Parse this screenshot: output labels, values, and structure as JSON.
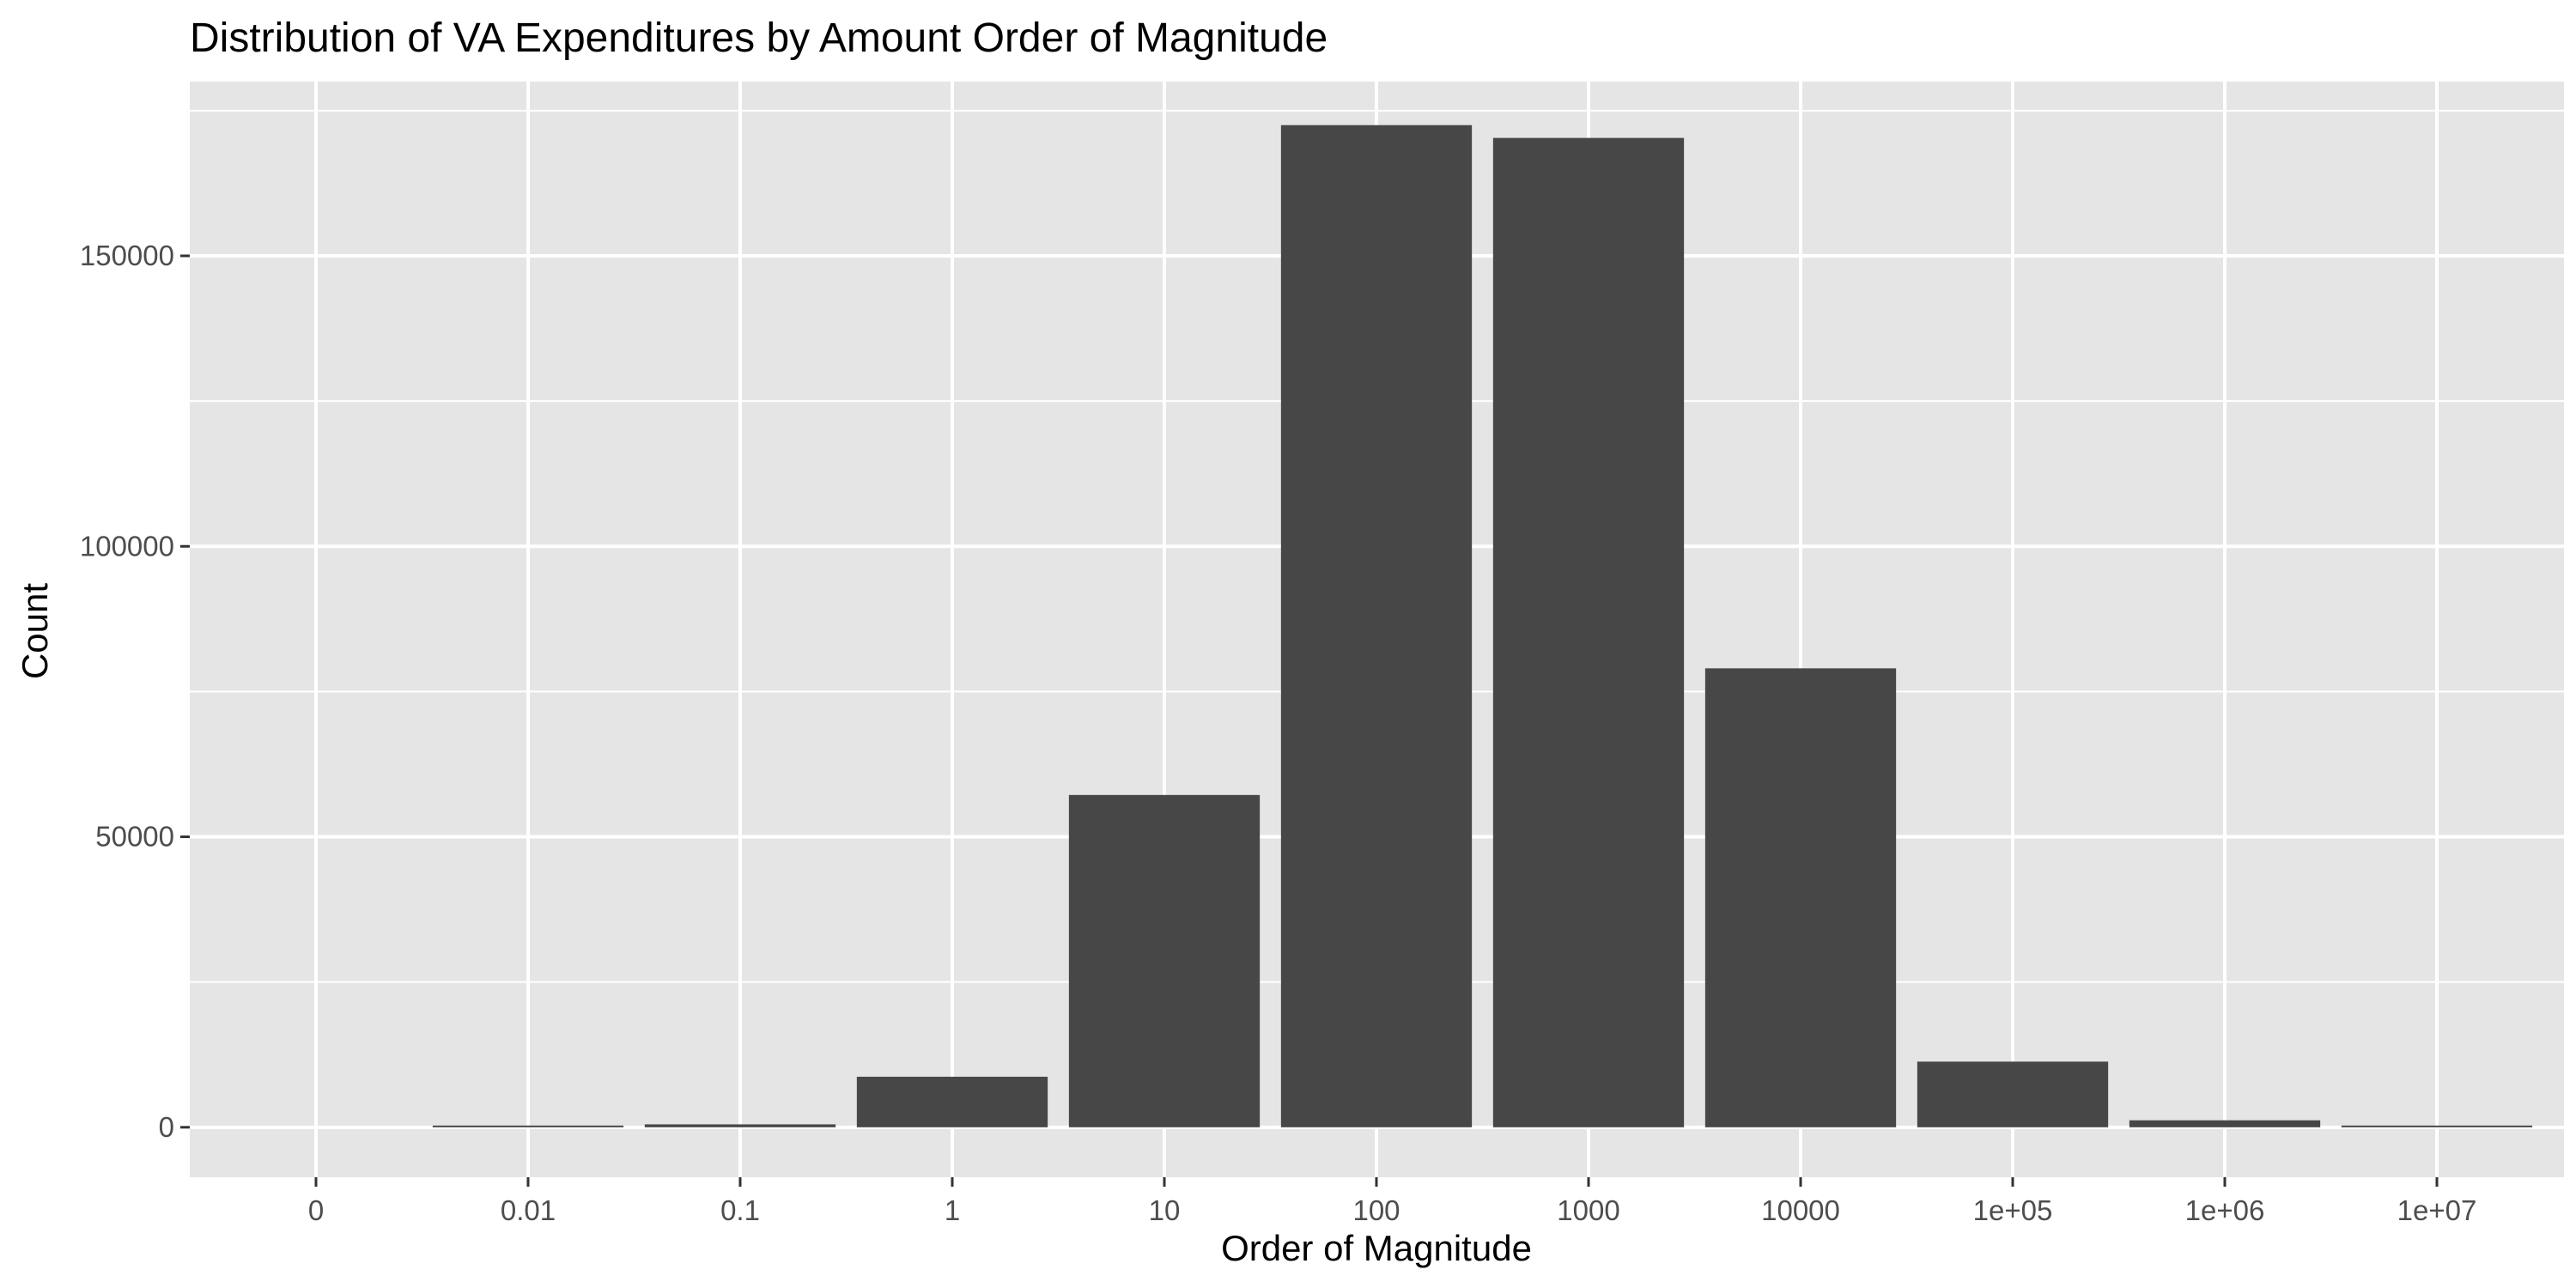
{
  "chart_data": {
    "type": "bar",
    "title": "Distribution of VA Expenditures by Amount Order of Magnitude",
    "xlabel": "Order of Magnitude",
    "ylabel": "Count",
    "x_tick_labels": [
      "0",
      "0.01",
      "0.1",
      "1",
      "10",
      "100",
      "1000",
      "10000",
      "1e+05",
      "1e+06",
      "1e+07"
    ],
    "bars": [
      {
        "x": 0.01,
        "value": 100
      },
      {
        "x": 0.1,
        "value": 500
      },
      {
        "x": 1,
        "value": 8700
      },
      {
        "x": 10,
        "value": 57200
      },
      {
        "x": 100,
        "value": 172500
      },
      {
        "x": 1000,
        "value": 170300
      },
      {
        "x": 10000,
        "value": 79000
      },
      {
        "x": "1e+05",
        "value": 11300
      },
      {
        "x": "1e+06",
        "value": 1200
      },
      {
        "x": "1e+07",
        "value": 100
      }
    ],
    "y_ticks": [
      0,
      50000,
      100000,
      150000
    ],
    "y_tick_labels": [
      "0",
      "50000",
      "100000",
      "150000"
    ],
    "ylim": [
      -8600,
      180000
    ],
    "grid": true,
    "panel_background": "#e5e5e5",
    "bar_color": "#474747",
    "grid_color": "#ffffff"
  }
}
